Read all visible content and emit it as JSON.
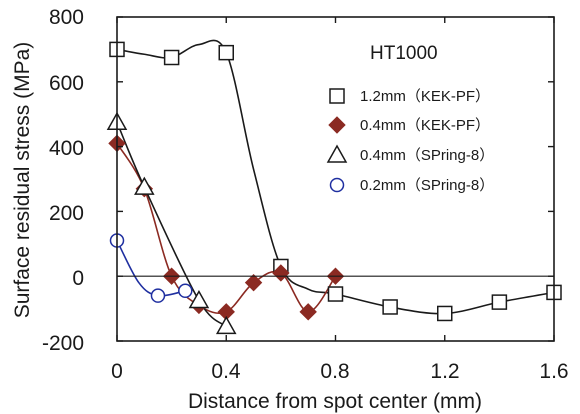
{
  "chart_data": {
    "type": "scatter",
    "title": "HT1000",
    "xlabel": "Distance from spot center (mm)",
    "ylabel": "Surface residual stress (MPa)",
    "xlim": [
      0,
      1.6
    ],
    "ylim": [
      -200,
      800
    ],
    "x_ticks": [
      "0",
      "0.4",
      "0.8",
      "1.2",
      "1.6"
    ],
    "y_ticks": [
      "800",
      "600",
      "400",
      "200",
      "0",
      "-200"
    ],
    "grid": false,
    "legend_position": "top-right",
    "series": [
      {
        "name": "1.2mm（KEK-PF）",
        "marker": "open-square",
        "color": "#1a1a1a",
        "points": [
          [
            0,
            700
          ],
          [
            0.2,
            675
          ],
          [
            0.4,
            690
          ],
          [
            0.6,
            30
          ],
          [
            0.8,
            -55
          ],
          [
            1.0,
            -95
          ],
          [
            1.2,
            -115
          ],
          [
            1.4,
            -80
          ],
          [
            1.6,
            -50
          ]
        ],
        "curve": [
          [
            0,
            700
          ],
          [
            0.1,
            685
          ],
          [
            0.2,
            675
          ],
          [
            0.3,
            715
          ],
          [
            0.4,
            690
          ],
          [
            0.5,
            330
          ],
          [
            0.6,
            30
          ],
          [
            0.7,
            -40
          ],
          [
            0.8,
            -55
          ],
          [
            1.0,
            -95
          ],
          [
            1.2,
            -115
          ],
          [
            1.4,
            -80
          ],
          [
            1.6,
            -50
          ]
        ]
      },
      {
        "name": "0.4mm（KEK-PF）",
        "marker": "filled-diamond",
        "color": "#8b2a22",
        "points": [
          [
            0,
            410
          ],
          [
            0.1,
            270
          ],
          [
            0.2,
            0
          ],
          [
            0.3,
            -90
          ],
          [
            0.4,
            -110
          ],
          [
            0.5,
            -20
          ],
          [
            0.6,
            10
          ],
          [
            0.7,
            -110
          ],
          [
            0.8,
            0
          ]
        ],
        "curve": [
          [
            0,
            410
          ],
          [
            0.1,
            270
          ],
          [
            0.2,
            0
          ],
          [
            0.3,
            -90
          ],
          [
            0.4,
            -110
          ],
          [
            0.5,
            -20
          ],
          [
            0.6,
            10
          ],
          [
            0.7,
            -110
          ],
          [
            0.8,
            0
          ]
        ]
      },
      {
        "name": "0.4mm（SPring-8）",
        "marker": "open-triangle",
        "color": "#1a1a1a",
        "points": [
          [
            0,
            475
          ],
          [
            0.1,
            275
          ],
          [
            0.3,
            -75
          ],
          [
            0.4,
            -155
          ]
        ],
        "curve": [
          [
            0,
            475
          ],
          [
            0.1,
            275
          ],
          [
            0.3,
            -75
          ],
          [
            0.4,
            -155
          ]
        ]
      },
      {
        "name": "0.2mm（SPring-8）",
        "marker": "open-circle",
        "color": "#1f2fa0",
        "points": [
          [
            0,
            110
          ],
          [
            0.15,
            -60
          ],
          [
            0.25,
            -45
          ]
        ],
        "curve": [
          [
            0,
            110
          ],
          [
            0.08,
            -20
          ],
          [
            0.15,
            -60
          ],
          [
            0.25,
            -45
          ]
        ]
      }
    ]
  }
}
